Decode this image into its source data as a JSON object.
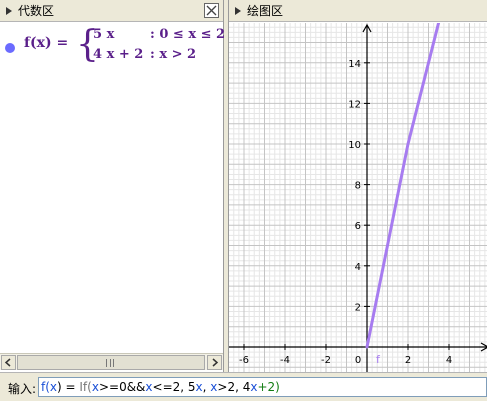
{
  "algebra_panel": {
    "title": "代数区",
    "object": {
      "name": "f(x) =",
      "color": "#6b6bff",
      "cases": [
        {
          "expr": "5 x",
          "cond": ": 0 ≤ x ≤ 2"
        },
        {
          "expr": "4 x + 2",
          "cond": ": x > 2"
        }
      ]
    },
    "scrollbar": {
      "grip": "III"
    }
  },
  "graphics_panel": {
    "title": "绘图区",
    "function_label": "f",
    "line_color": "#a77cf0",
    "x_ticks": [
      "-6",
      "-4",
      "-2",
      "0",
      "2",
      "4"
    ],
    "y_ticks": [
      "2",
      "4",
      "6",
      "8",
      "10",
      "12",
      "14"
    ]
  },
  "chart_data": {
    "type": "line",
    "series": [
      {
        "name": "f",
        "x": [
          0,
          2,
          3.5
        ],
        "y": [
          0,
          10,
          16
        ]
      }
    ],
    "x_ticks": [
      -6,
      -4,
      -2,
      0,
      2,
      4
    ],
    "y_ticks": [
      2,
      4,
      6,
      8,
      10,
      12,
      14
    ],
    "xlim": [
      -6.8,
      6
    ],
    "ylim": [
      -1.3,
      16
    ],
    "grid": true
  },
  "input_bar": {
    "label": "输入:",
    "tokens": [
      {
        "t": "f(",
        "c": "tok-f"
      },
      {
        "t": "x",
        "c": "tok-x"
      },
      {
        "t": ") = ",
        "c": "tok-eq"
      },
      {
        "t": "If(",
        "c": "tok-if"
      },
      {
        "t": "x",
        "c": "tok-x"
      },
      {
        "t": ">=0&&",
        "c": "tok-n"
      },
      {
        "t": "x",
        "c": "tok-x"
      },
      {
        "t": "<=2, 5",
        "c": "tok-n"
      },
      {
        "t": "x",
        "c": "tok-x"
      },
      {
        "t": ", ",
        "c": "tok-n"
      },
      {
        "t": "x",
        "c": "tok-x"
      },
      {
        "t": ">2, 4",
        "c": "tok-n"
      },
      {
        "t": "x",
        "c": "tok-x"
      },
      {
        "t": "+2)",
        "c": "tok-g"
      }
    ]
  }
}
